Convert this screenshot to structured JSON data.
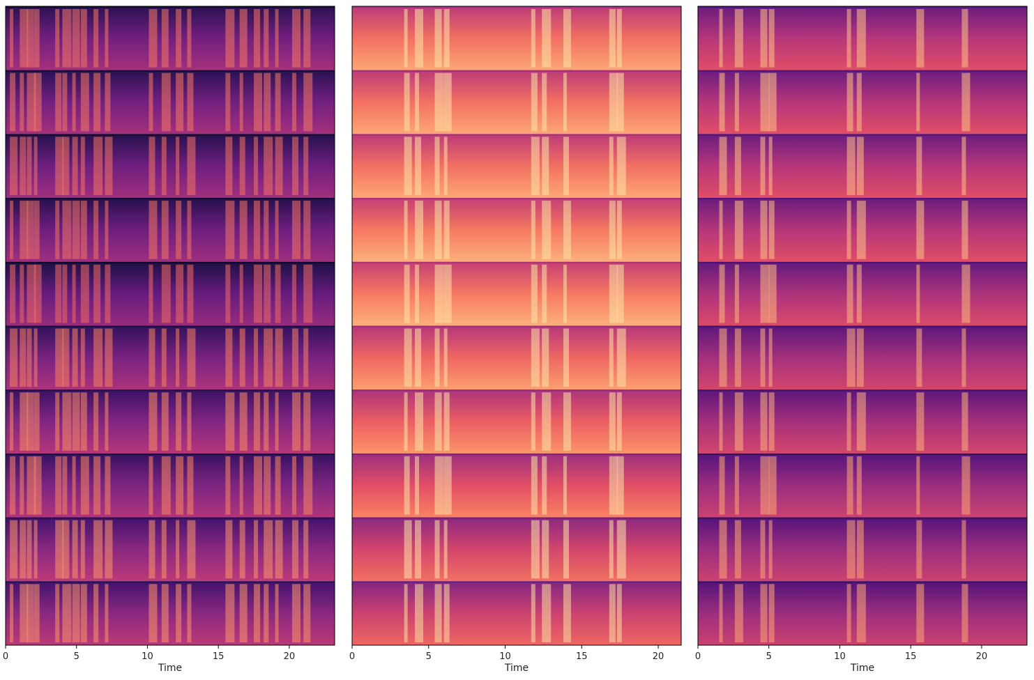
{
  "chart_data": [
    {
      "type": "heatmap",
      "xlabel": "Time",
      "ylabel": "",
      "xlim": [
        0,
        23.2
      ],
      "x_ticks": [
        0,
        5,
        10,
        15,
        20
      ],
      "x_tick_labels": [
        "0",
        "5",
        "10",
        "15",
        "20"
      ],
      "rows": 10,
      "colormap": "magma",
      "base_level": [
        0.34,
        0.34,
        0.33,
        0.33,
        0.31,
        0.36,
        0.38,
        0.37,
        0.4,
        0.4
      ],
      "bursts": [
        0.3,
        1.0,
        1.5,
        2.0,
        3.5,
        4.0,
        4.7,
        5.3,
        6.2,
        7.0,
        10.1,
        11.0,
        12.0,
        12.8,
        15.5,
        16.5,
        17.5,
        18.2,
        19.0,
        20.2,
        21.0
      ]
    },
    {
      "type": "heatmap",
      "xlabel": "Time",
      "ylabel": "",
      "xlim": [
        0,
        21.5
      ],
      "x_ticks": [
        0,
        5,
        10,
        15,
        20
      ],
      "x_tick_labels": [
        "0",
        "5",
        "10",
        "15",
        "20"
      ],
      "rows": 10,
      "colormap": "magma",
      "base_level": [
        0.7,
        0.7,
        0.7,
        0.72,
        0.72,
        0.68,
        0.66,
        0.62,
        0.58,
        0.56
      ],
      "bursts": [
        3.4,
        4.1,
        5.4,
        6.0,
        11.7,
        12.4,
        13.8,
        16.8,
        17.3
      ]
    },
    {
      "type": "heatmap",
      "xlabel": "Time",
      "ylabel": "",
      "xlim": [
        0,
        23.2
      ],
      "x_ticks": [
        0,
        5,
        10,
        15,
        20
      ],
      "x_tick_labels": [
        "0",
        "5",
        "10",
        "15",
        "20"
      ],
      "rows": 10,
      "colormap": "magma",
      "base_level": [
        0.5,
        0.5,
        0.5,
        0.5,
        0.48,
        0.46,
        0.46,
        0.44,
        0.44,
        0.44
      ],
      "bursts": [
        1.5,
        2.6,
        4.4,
        5.0,
        10.5,
        11.2,
        15.4,
        18.6
      ]
    }
  ]
}
